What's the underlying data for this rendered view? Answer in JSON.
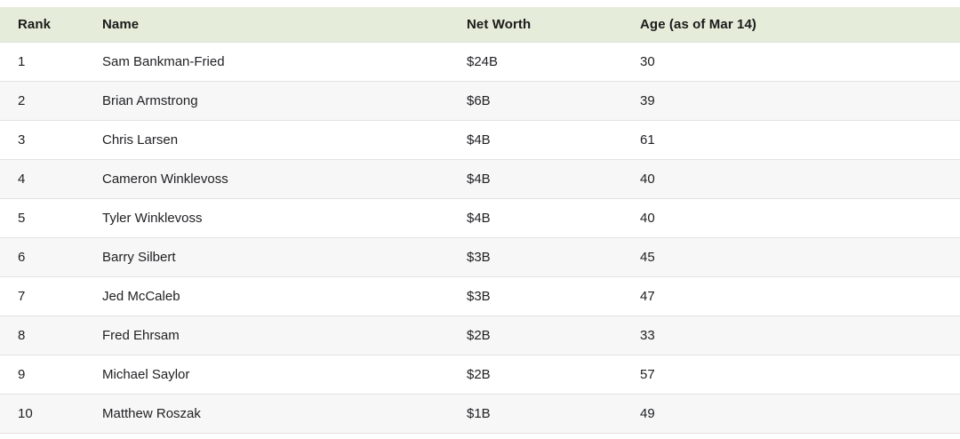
{
  "table": {
    "columns": [
      "Rank",
      "Name",
      "Net Worth",
      "Age (as of Mar 14)"
    ],
    "rows": [
      [
        "1",
        "Sam Bankman-Fried",
        "$24B",
        "30"
      ],
      [
        "2",
        "Brian Armstrong",
        "$6B",
        "39"
      ],
      [
        "3",
        "Chris Larsen",
        "$4B",
        "61"
      ],
      [
        "4",
        "Cameron Winklevoss",
        "$4B",
        "40"
      ],
      [
        "5",
        "Tyler Winklevoss",
        "$4B",
        "40"
      ],
      [
        "6",
        "Barry Silbert",
        "$3B",
        "45"
      ],
      [
        "7",
        "Jed McCaleb",
        "$3B",
        "47"
      ],
      [
        "8",
        "Fred Ehrsam",
        "$2B",
        "33"
      ],
      [
        "9",
        "Michael Saylor",
        "$2B",
        "57"
      ],
      [
        "10",
        "Matthew Roszak",
        "$1B",
        "49"
      ]
    ],
    "colors": {
      "header_bg": "#e5edda",
      "stripe_bg": "#f7f7f7",
      "row_bg": "#ffffff",
      "border": "#e2e2e2",
      "text": "#202124"
    }
  },
  "chart_data": {
    "type": "table",
    "columns": [
      "Rank",
      "Name",
      "Net Worth",
      "Age (as of Mar 14)"
    ],
    "rows": [
      {
        "rank": 1,
        "name": "Sam Bankman-Fried",
        "net_worth": "$24B",
        "age": 30
      },
      {
        "rank": 2,
        "name": "Brian Armstrong",
        "net_worth": "$6B",
        "age": 39
      },
      {
        "rank": 3,
        "name": "Chris Larsen",
        "net_worth": "$4B",
        "age": 61
      },
      {
        "rank": 4,
        "name": "Cameron Winklevoss",
        "net_worth": "$4B",
        "age": 40
      },
      {
        "rank": 5,
        "name": "Tyler Winklevoss",
        "net_worth": "$4B",
        "age": 40
      },
      {
        "rank": 6,
        "name": "Barry Silbert",
        "net_worth": "$3B",
        "age": 45
      },
      {
        "rank": 7,
        "name": "Jed McCaleb",
        "net_worth": "$3B",
        "age": 47
      },
      {
        "rank": 8,
        "name": "Fred Ehrsam",
        "net_worth": "$2B",
        "age": 33
      },
      {
        "rank": 9,
        "name": "Michael Saylor",
        "net_worth": "$2B",
        "age": 57
      },
      {
        "rank": 10,
        "name": "Matthew Roszak",
        "net_worth": "$1B",
        "age": 49
      }
    ]
  }
}
